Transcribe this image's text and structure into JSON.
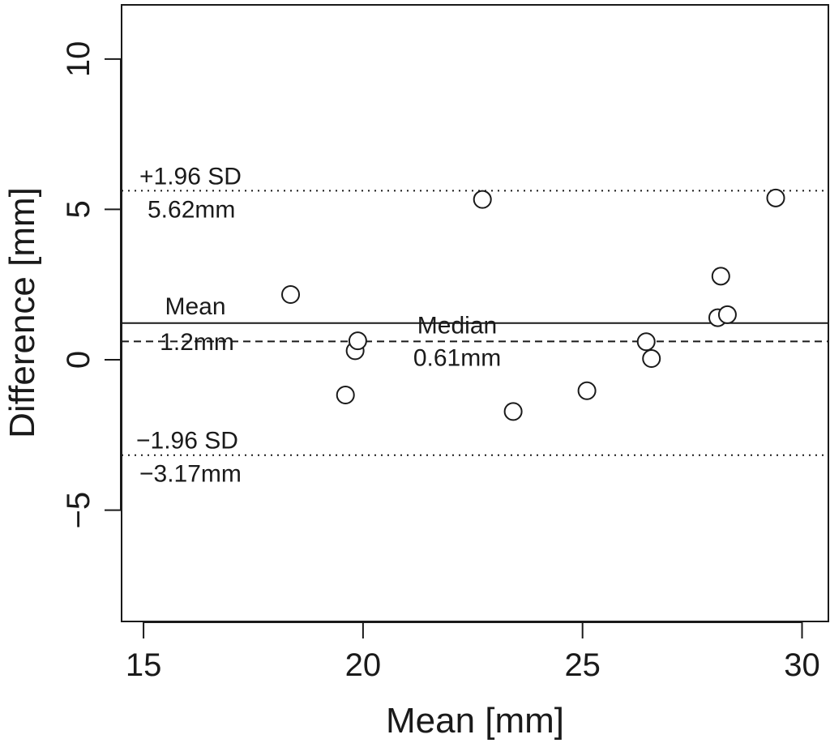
{
  "chart_data": {
    "type": "scatter",
    "xlabel": "Mean [mm]",
    "ylabel": "Difference [mm]",
    "xlim": [
      14.5,
      30.6
    ],
    "ylim": [
      -8.7,
      11.8
    ],
    "x_ticks": [
      15,
      20,
      25,
      30
    ],
    "y_ticks": [
      -5,
      0,
      5,
      10
    ],
    "x_tick_labels": [
      "15",
      "20",
      "25",
      "30"
    ],
    "y_tick_labels": [
      "−5",
      "0",
      "5",
      "10"
    ],
    "grid": false,
    "points": [
      {
        "x": 18.35,
        "y": 2.17
      },
      {
        "x": 19.6,
        "y": -1.17
      },
      {
        "x": 19.82,
        "y": 0.3
      },
      {
        "x": 19.88,
        "y": 0.63
      },
      {
        "x": 22.72,
        "y": 5.33
      },
      {
        "x": 23.42,
        "y": -1.72
      },
      {
        "x": 25.1,
        "y": -1.03
      },
      {
        "x": 26.45,
        "y": 0.6
      },
      {
        "x": 26.57,
        "y": 0.04
      },
      {
        "x": 28.08,
        "y": 1.4
      },
      {
        "x": 28.15,
        "y": 2.78
      },
      {
        "x": 28.3,
        "y": 1.5
      },
      {
        "x": 29.4,
        "y": 5.38
      }
    ],
    "reference_lines": [
      {
        "kind": "upper-limit",
        "y": 5.62,
        "style": "dotted",
        "label": "+1.96 SD",
        "value_label": "5.62mm"
      },
      {
        "kind": "mean",
        "y": 1.22,
        "style": "solid",
        "label": "Mean",
        "value_label": "1.2mm"
      },
      {
        "kind": "median",
        "y": 0.61,
        "style": "dashed",
        "label": "Median",
        "value_label": "0.61mm"
      },
      {
        "kind": "lower-limit",
        "y": -3.17,
        "style": "dotted",
        "label": "−1.96 SD",
        "value_label": "−3.17mm"
      }
    ]
  }
}
